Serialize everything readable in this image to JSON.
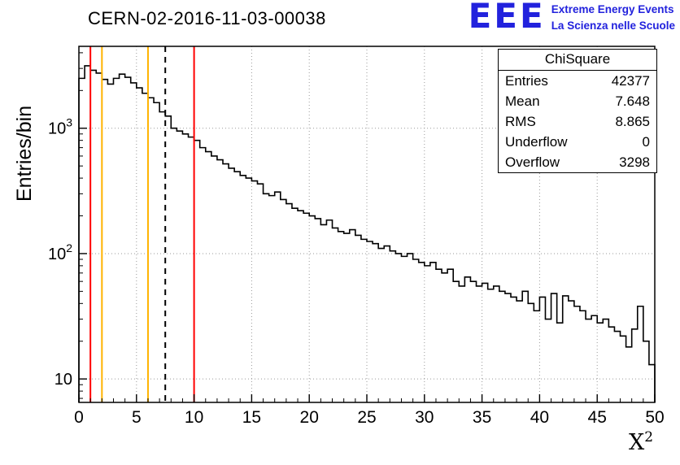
{
  "title": "CERN-02-2016-11-03-00038",
  "logo": {
    "acronym": "EEE",
    "line1": "Extreme Energy Events",
    "line2": "La Scienza nelle Scuole",
    "color": "#2222dd"
  },
  "axes": {
    "ylabel": "Entries/bin",
    "xlabel_base": "X",
    "xlabel_sup": "2"
  },
  "stats": {
    "title": "ChiSquare",
    "rows": [
      {
        "label": "Entries",
        "value": "42377"
      },
      {
        "label": "Mean",
        "value": "7.648"
      },
      {
        "label": "RMS",
        "value": "8.865"
      },
      {
        "label": "Underflow",
        "value": "0"
      },
      {
        "label": "Overflow",
        "value": "3298"
      }
    ]
  },
  "chart_data": {
    "type": "bar",
    "title": "CERN-02-2016-11-03-00038",
    "xlabel": "X^2",
    "ylabel": "Entries/bin",
    "yscale": "log",
    "xlim": [
      0,
      50
    ],
    "ylim": [
      6.5,
      4500
    ],
    "x_start": 0,
    "bin_width": 0.5,
    "values": [
      2500,
      3150,
      2900,
      2750,
      2450,
      2250,
      2500,
      2700,
      2550,
      2300,
      2100,
      1900,
      1750,
      1600,
      1350,
      1250,
      1000,
      950,
      900,
      850,
      800,
      700,
      650,
      600,
      560,
      520,
      480,
      450,
      420,
      400,
      380,
      360,
      300,
      290,
      310,
      270,
      250,
      230,
      220,
      210,
      200,
      190,
      170,
      185,
      160,
      150,
      145,
      155,
      140,
      130,
      125,
      120,
      110,
      115,
      105,
      100,
      95,
      100,
      90,
      85,
      80,
      85,
      75,
      70,
      75,
      60,
      55,
      65,
      60,
      55,
      58,
      52,
      55,
      50,
      48,
      45,
      42,
      50,
      40,
      35,
      45,
      30,
      48,
      28,
      46,
      42,
      38,
      35,
      30,
      32,
      28,
      30,
      26,
      24,
      22,
      18,
      25,
      38,
      20,
      13
    ],
    "xticks": [
      0,
      5,
      10,
      15,
      20,
      25,
      30,
      35,
      40,
      45,
      50
    ],
    "ytick_decades": [
      10,
      100,
      1000
    ],
    "grid": true,
    "legend_position": "none",
    "line_color": "#000000",
    "marker_lines": [
      {
        "x": 1,
        "color": "#ff0000",
        "dash": "solid"
      },
      {
        "x": 2,
        "color": "#ffb300",
        "dash": "solid"
      },
      {
        "x": 6,
        "color": "#ffb300",
        "dash": "solid"
      },
      {
        "x": 7.5,
        "color": "#000000",
        "dash": "dashed"
      },
      {
        "x": 10,
        "color": "#ff0000",
        "dash": "solid"
      }
    ]
  }
}
